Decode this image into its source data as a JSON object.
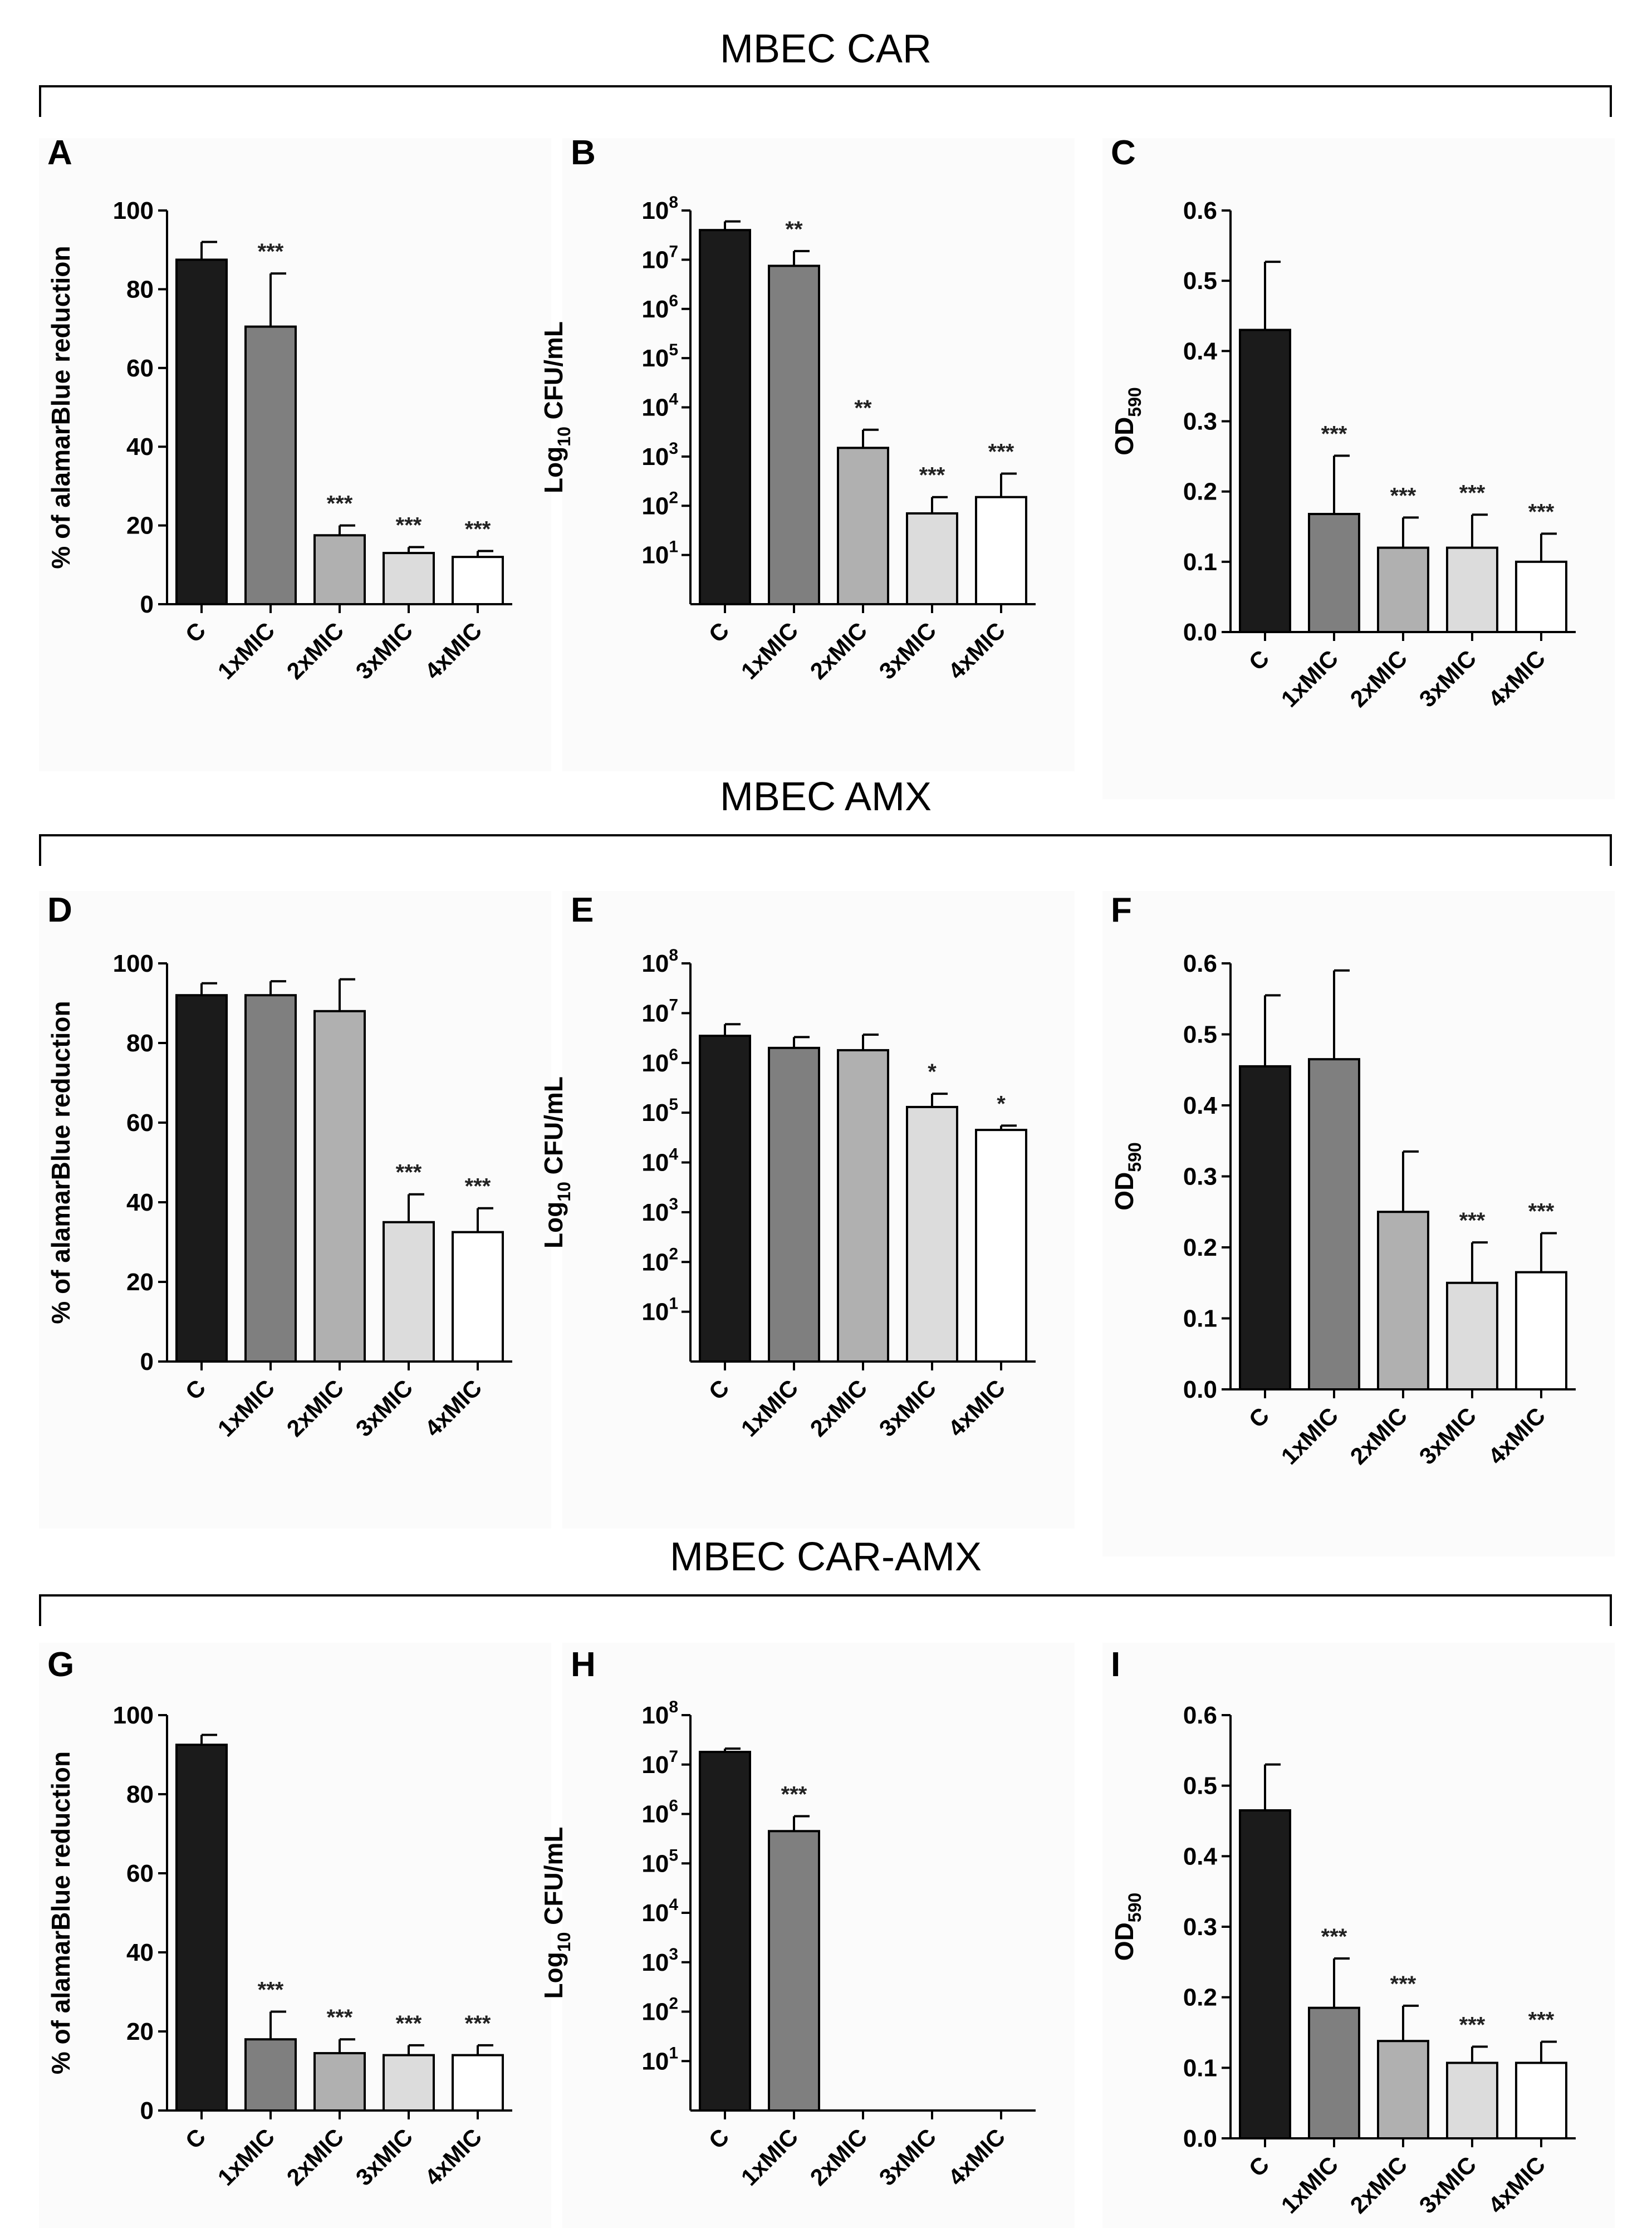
{
  "sections": [
    {
      "title": "MBEC CAR"
    },
    {
      "title": "MBEC AMX"
    },
    {
      "title": "MBEC CAR-AMX"
    }
  ],
  "chart_data": [
    {
      "panel": "A",
      "type": "bar",
      "scale": "linear",
      "ylabel": "% of alamarBlue reduction",
      "categories": [
        "C",
        "1xMIC",
        "2xMIC",
        "3xMIC",
        "4xMIC"
      ],
      "values": [
        87.5,
        70.5,
        17.5,
        13,
        12
      ],
      "errors": [
        4.5,
        13.5,
        2.5,
        1.5,
        1.5
      ],
      "significance": [
        "",
        "***",
        "***",
        "***",
        "***"
      ],
      "ylim": [
        0,
        100
      ],
      "yticks": [
        "0",
        "20",
        "40",
        "60",
        "80",
        "100"
      ]
    },
    {
      "panel": "B",
      "type": "bar",
      "scale": "log",
      "ylabel_prefix": "Log",
      "ylabel_sub": "10",
      "ylabel_suffix": " CFU/mL",
      "categories": [
        "C",
        "1xMIC",
        "2xMIC",
        "3xMIC",
        "4xMIC"
      ],
      "values": [
        40000000,
        7500000,
        1500,
        70,
        150
      ],
      "error_tops": [
        60000000,
        15000000,
        3500,
        150,
        450
      ],
      "significance": [
        "",
        "**",
        "**",
        "***",
        "***"
      ],
      "yticks": [
        {
          "base": "10",
          "exp": "1"
        },
        {
          "base": "10",
          "exp": "2"
        },
        {
          "base": "10",
          "exp": "3"
        },
        {
          "base": "10",
          "exp": "4"
        },
        {
          "base": "10",
          "exp": "5"
        },
        {
          "base": "10",
          "exp": "6"
        },
        {
          "base": "10",
          "exp": "7"
        },
        {
          "base": "10",
          "exp": "8"
        }
      ]
    },
    {
      "panel": "C",
      "type": "bar",
      "scale": "linear",
      "ylabel_prefix": "OD",
      "ylabel_sub": "590",
      "categories": [
        "C",
        "1xMIC",
        "2xMIC",
        "3xMIC",
        "4xMIC"
      ],
      "values": [
        0.43,
        0.168,
        0.12,
        0.12,
        0.1
      ],
      "errors": [
        0.097,
        0.083,
        0.043,
        0.047,
        0.04
      ],
      "significance": [
        "",
        "***",
        "***",
        "***",
        "***"
      ],
      "ylim": [
        0,
        0.6
      ],
      "yticks": [
        "0.0",
        "0.1",
        "0.2",
        "0.3",
        "0.4",
        "0.5",
        "0.6"
      ]
    },
    {
      "panel": "D",
      "type": "bar",
      "scale": "linear",
      "ylabel": "% of alamarBlue reduction",
      "categories": [
        "C",
        "1xMIC",
        "2xMIC",
        "3xMIC",
        "4xMIC"
      ],
      "values": [
        92,
        92,
        88,
        35,
        32.5
      ],
      "errors": [
        3,
        3.5,
        8,
        7,
        6
      ],
      "significance": [
        "",
        "",
        "",
        "***",
        "***"
      ],
      "ylim": [
        0,
        100
      ],
      "yticks": [
        "0",
        "20",
        "40",
        "60",
        "80",
        "100"
      ]
    },
    {
      "panel": "E",
      "type": "bar",
      "scale": "log",
      "ylabel_prefix": "Log",
      "ylabel_sub": "10",
      "ylabel_suffix": " CFU/mL",
      "categories": [
        "C",
        "1xMIC",
        "2xMIC",
        "3xMIC",
        "4xMIC"
      ],
      "values": [
        3500000,
        2000000,
        1800000,
        130000,
        45000
      ],
      "error_tops": [
        6000000,
        3300000,
        3700000,
        240000,
        55000
      ],
      "significance": [
        "",
        "",
        "",
        "*",
        "*"
      ],
      "yticks": [
        {
          "base": "10",
          "exp": "1"
        },
        {
          "base": "10",
          "exp": "2"
        },
        {
          "base": "10",
          "exp": "3"
        },
        {
          "base": "10",
          "exp": "4"
        },
        {
          "base": "10",
          "exp": "5"
        },
        {
          "base": "10",
          "exp": "6"
        },
        {
          "base": "10",
          "exp": "7"
        },
        {
          "base": "10",
          "exp": "8"
        }
      ]
    },
    {
      "panel": "F",
      "type": "bar",
      "scale": "linear",
      "ylabel_prefix": "OD",
      "ylabel_sub": "590",
      "categories": [
        "C",
        "1xMIC",
        "2xMIC",
        "3xMIC",
        "4xMIC"
      ],
      "values": [
        0.455,
        0.465,
        0.25,
        0.15,
        0.165
      ],
      "errors": [
        0.1,
        0.125,
        0.085,
        0.057,
        0.055
      ],
      "significance": [
        "",
        "",
        "",
        "***",
        "***"
      ],
      "ylim": [
        0,
        0.6
      ],
      "yticks": [
        "0.0",
        "0.1",
        "0.2",
        "0.3",
        "0.4",
        "0.5",
        "0.6"
      ]
    },
    {
      "panel": "G",
      "type": "bar",
      "scale": "linear",
      "ylabel": "% of alamarBlue reduction",
      "categories": [
        "C",
        "1xMIC",
        "2xMIC",
        "3xMIC",
        "4xMIC"
      ],
      "values": [
        92.5,
        18,
        14.5,
        14,
        14
      ],
      "errors": [
        2.5,
        7,
        3.5,
        2.5,
        2.5
      ],
      "significance": [
        "",
        "***",
        "***",
        "***",
        "***"
      ],
      "ylim": [
        0,
        100
      ],
      "yticks": [
        "0",
        "20",
        "40",
        "60",
        "80",
        "100"
      ]
    },
    {
      "panel": "H",
      "type": "bar",
      "scale": "log",
      "ylabel_prefix": "Log",
      "ylabel_sub": "10",
      "ylabel_suffix": " CFU/mL",
      "categories": [
        "C",
        "1xMIC",
        "2xMIC",
        "3xMIC",
        "4xMIC"
      ],
      "values": [
        18000000,
        450000,
        null,
        null,
        null
      ],
      "error_tops": [
        21000000,
        900000,
        null,
        null,
        null
      ],
      "significance": [
        "",
        "***",
        "",
        "",
        ""
      ],
      "yticks": [
        {
          "base": "10",
          "exp": "1"
        },
        {
          "base": "10",
          "exp": "2"
        },
        {
          "base": "10",
          "exp": "3"
        },
        {
          "base": "10",
          "exp": "4"
        },
        {
          "base": "10",
          "exp": "5"
        },
        {
          "base": "10",
          "exp": "6"
        },
        {
          "base": "10",
          "exp": "7"
        },
        {
          "base": "10",
          "exp": "8"
        }
      ]
    },
    {
      "panel": "I",
      "type": "bar",
      "scale": "linear",
      "ylabel_prefix": "OD",
      "ylabel_sub": "590",
      "categories": [
        "C",
        "1xMIC",
        "2xMIC",
        "3xMIC",
        "4xMIC"
      ],
      "values": [
        0.465,
        0.185,
        0.138,
        0.107,
        0.107
      ],
      "errors": [
        0.065,
        0.07,
        0.05,
        0.023,
        0.03
      ],
      "significance": [
        "",
        "***",
        "***",
        "***",
        "***"
      ],
      "ylim": [
        0,
        0.6
      ],
      "yticks": [
        "0.0",
        "0.1",
        "0.2",
        "0.3",
        "0.4",
        "0.5",
        "0.6"
      ]
    }
  ],
  "colors": {
    "bars": [
      "#1b1b1b",
      "#7f7f7f",
      "#b0b0b0",
      "#dcdcdc",
      "#ffffff"
    ],
    "stroke": "#000000",
    "panel_bg": "#fbfbfb"
  }
}
